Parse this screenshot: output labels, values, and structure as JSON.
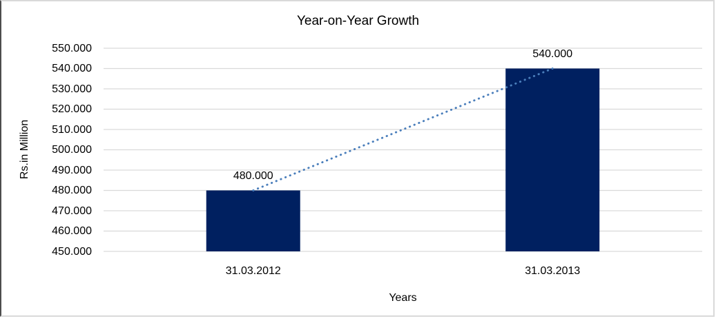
{
  "chart_data": {
    "type": "bar",
    "title": "Year-on-Year Growth",
    "xlabel": "Years",
    "ylabel": "Rs.in Million",
    "categories": [
      "31.03.2012",
      "31.03.2013"
    ],
    "values": [
      480,
      540
    ],
    "data_labels": [
      "480.000",
      "540.000"
    ],
    "ylim": [
      450,
      550
    ],
    "ytick_step": 10,
    "ytick_labels": [
      "450.000",
      "460.000",
      "470.000",
      "480.000",
      "490.000",
      "500.000",
      "510.000",
      "520.000",
      "530.000",
      "540.000",
      "550.000"
    ],
    "grid": true,
    "legend": "none",
    "trendline": {
      "style": "dotted",
      "connects": "bar tops",
      "color": "#4a7ebb"
    },
    "colors": {
      "bar": "#002060",
      "trend": "#4a7ebb",
      "grid": "#d9d9d9",
      "text": "#000000",
      "frame_light": "#d9d9d9",
      "frame_dark": "#4d4d4d"
    }
  }
}
